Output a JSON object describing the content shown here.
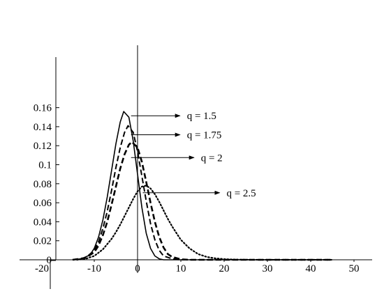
{
  "chart_data": {
    "type": "line",
    "title": "",
    "xlabel": "",
    "ylabel": "",
    "xlim": [
      -22,
      50
    ],
    "ylim": [
      0,
      0.16
    ],
    "x_ticks": [
      {
        "value": -20,
        "label": "-20"
      },
      {
        "value": -10,
        "label": "-10"
      },
      {
        "value": 0,
        "label": "0"
      },
      {
        "value": 10,
        "label": "10"
      },
      {
        "value": 20,
        "label": "20"
      },
      {
        "value": 30,
        "label": "30"
      },
      {
        "value": 40,
        "label": "40"
      },
      {
        "value": 50,
        "label": "50"
      }
    ],
    "y_ticks": [
      {
        "value": 0,
        "label": "0"
      },
      {
        "value": 0.02,
        "label": "0.02"
      },
      {
        "value": 0.04,
        "label": "0.04"
      },
      {
        "value": 0.06,
        "label": "0.06"
      },
      {
        "value": 0.08,
        "label": "0.08"
      },
      {
        "value": 0.1,
        "label": "0.1"
      },
      {
        "value": 0.12,
        "label": "0.12"
      },
      {
        "value": 0.14,
        "label": "0.14"
      },
      {
        "value": 0.16,
        "label": "0.16"
      }
    ],
    "grid": false,
    "series": [
      {
        "label": "q = 1.5",
        "style": "solid",
        "points": [
          [
            -15,
            0
          ],
          [
            -13,
            0.001
          ],
          [
            -11,
            0.005
          ],
          [
            -10,
            0.012
          ],
          [
            -9,
            0.024
          ],
          [
            -8,
            0.042
          ],
          [
            -7,
            0.066
          ],
          [
            -6,
            0.094
          ],
          [
            -5,
            0.122
          ],
          [
            -4,
            0.145
          ],
          [
            -3.2,
            0.156
          ],
          [
            -2,
            0.15
          ],
          [
            -1,
            0.125
          ],
          [
            0,
            0.09
          ],
          [
            1,
            0.055
          ],
          [
            2,
            0.028
          ],
          [
            3,
            0.012
          ],
          [
            4,
            0.004
          ],
          [
            5,
            0.001
          ],
          [
            6,
            0
          ],
          [
            45,
            0
          ]
        ]
      },
      {
        "label": "q = 1.75",
        "style": "dashed",
        "points": [
          [
            -15,
            0
          ],
          [
            -12,
            0.002
          ],
          [
            -10,
            0.01
          ],
          [
            -9,
            0.019
          ],
          [
            -8,
            0.033
          ],
          [
            -7,
            0.051
          ],
          [
            -6,
            0.073
          ],
          [
            -5,
            0.097
          ],
          [
            -4,
            0.118
          ],
          [
            -3,
            0.134
          ],
          [
            -2.2,
            0.141
          ],
          [
            -1,
            0.134
          ],
          [
            0,
            0.114
          ],
          [
            1,
            0.088
          ],
          [
            2,
            0.062
          ],
          [
            3,
            0.038
          ],
          [
            4,
            0.021
          ],
          [
            5,
            0.01
          ],
          [
            6,
            0.004
          ],
          [
            8,
            0.001
          ],
          [
            10,
            0
          ],
          [
            45,
            0
          ]
        ]
      },
      {
        "label": "q = 2",
        "style": "dashed",
        "points": [
          [
            -15,
            0
          ],
          [
            -12,
            0.002
          ],
          [
            -10,
            0.008
          ],
          [
            -9,
            0.015
          ],
          [
            -8,
            0.026
          ],
          [
            -7,
            0.04
          ],
          [
            -6,
            0.058
          ],
          [
            -5,
            0.077
          ],
          [
            -4,
            0.096
          ],
          [
            -3,
            0.111
          ],
          [
            -2,
            0.121
          ],
          [
            -1.3,
            0.124
          ],
          [
            0,
            0.118
          ],
          [
            1,
            0.103
          ],
          [
            2,
            0.082
          ],
          [
            3,
            0.06
          ],
          [
            4,
            0.04
          ],
          [
            5,
            0.024
          ],
          [
            6,
            0.013
          ],
          [
            7,
            0.006
          ],
          [
            8,
            0.003
          ],
          [
            10,
            0.0005
          ],
          [
            12,
            0
          ],
          [
            45,
            0
          ]
        ]
      },
      {
        "label": "q = 2.5",
        "style": "dotted",
        "points": [
          [
            -14,
            0
          ],
          [
            -12,
            0.001
          ],
          [
            -10,
            0.004
          ],
          [
            -8,
            0.011
          ],
          [
            -6,
            0.022
          ],
          [
            -5,
            0.029
          ],
          [
            -4,
            0.037
          ],
          [
            -3,
            0.046
          ],
          [
            -2,
            0.055
          ],
          [
            -1,
            0.064
          ],
          [
            0,
            0.072
          ],
          [
            1,
            0.077
          ],
          [
            2,
            0.078
          ],
          [
            3,
            0.075
          ],
          [
            4,
            0.069
          ],
          [
            5,
            0.061
          ],
          [
            6,
            0.052
          ],
          [
            7,
            0.043
          ],
          [
            8,
            0.035
          ],
          [
            9,
            0.028
          ],
          [
            10,
            0.021
          ],
          [
            12,
            0.012
          ],
          [
            14,
            0.006
          ],
          [
            16,
            0.003
          ],
          [
            18,
            0.0015
          ],
          [
            20,
            0.0007
          ],
          [
            22,
            0.0003
          ],
          [
            25,
            0.0001
          ],
          [
            30,
            0
          ],
          [
            45,
            0
          ]
        ]
      }
    ],
    "annotations": [
      {
        "text": "q = 1.5",
        "x": -1.5,
        "y": 0.1515
      },
      {
        "text": "q = 1.75",
        "x": -1.5,
        "y": 0.1315
      },
      {
        "text": "q = 2",
        "x": -1.5,
        "y": 0.1075
      },
      {
        "text": "q = 2.5",
        "x": 1.2,
        "y": 0.0705
      }
    ]
  }
}
